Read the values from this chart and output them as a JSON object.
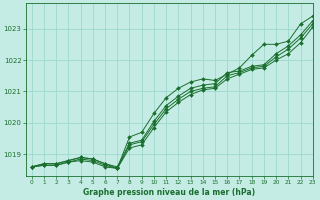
{
  "xlabel": "Graphe pression niveau de la mer (hPa)",
  "ylim": [
    1018.3,
    1023.8
  ],
  "xlim": [
    -0.5,
    23
  ],
  "yticks": [
    1019,
    1020,
    1021,
    1022,
    1023
  ],
  "xticks": [
    0,
    1,
    2,
    3,
    4,
    5,
    6,
    7,
    8,
    9,
    10,
    11,
    12,
    13,
    14,
    15,
    16,
    17,
    18,
    19,
    20,
    21,
    22,
    23
  ],
  "bg_color": "#c5ece4",
  "grid_color": "#9dd8ce",
  "line_color": "#1a6e2e",
  "series1": [
    1018.6,
    1018.65,
    1018.65,
    1018.75,
    1018.8,
    1018.75,
    1018.6,
    1018.55,
    1019.2,
    1019.3,
    1019.85,
    1020.35,
    1020.65,
    1020.9,
    1021.05,
    1021.1,
    1021.4,
    1021.55,
    1021.7,
    1021.75,
    1022.0,
    1022.2,
    1022.55,
    1023.05
  ],
  "series2": [
    1018.6,
    1018.65,
    1018.65,
    1018.75,
    1018.85,
    1018.8,
    1018.65,
    1018.55,
    1019.3,
    1019.4,
    1019.95,
    1020.45,
    1020.75,
    1021.0,
    1021.1,
    1021.15,
    1021.5,
    1021.6,
    1021.75,
    1021.8,
    1022.1,
    1022.35,
    1022.7,
    1023.15
  ],
  "series3": [
    1018.6,
    1018.7,
    1018.7,
    1018.8,
    1018.9,
    1018.85,
    1018.7,
    1018.6,
    1019.35,
    1019.45,
    1020.05,
    1020.55,
    1020.85,
    1021.1,
    1021.2,
    1021.25,
    1021.6,
    1021.65,
    1021.8,
    1021.85,
    1022.2,
    1022.45,
    1022.8,
    1023.25
  ],
  "series4": [
    1018.6,
    1018.7,
    1018.7,
    1018.8,
    1018.9,
    1018.85,
    1018.7,
    1018.55,
    1019.55,
    1019.7,
    1020.3,
    1020.8,
    1021.1,
    1021.3,
    1021.4,
    1021.35,
    1021.55,
    1021.75,
    1022.15,
    1022.5,
    1022.5,
    1022.6,
    1023.15,
    1023.4
  ]
}
